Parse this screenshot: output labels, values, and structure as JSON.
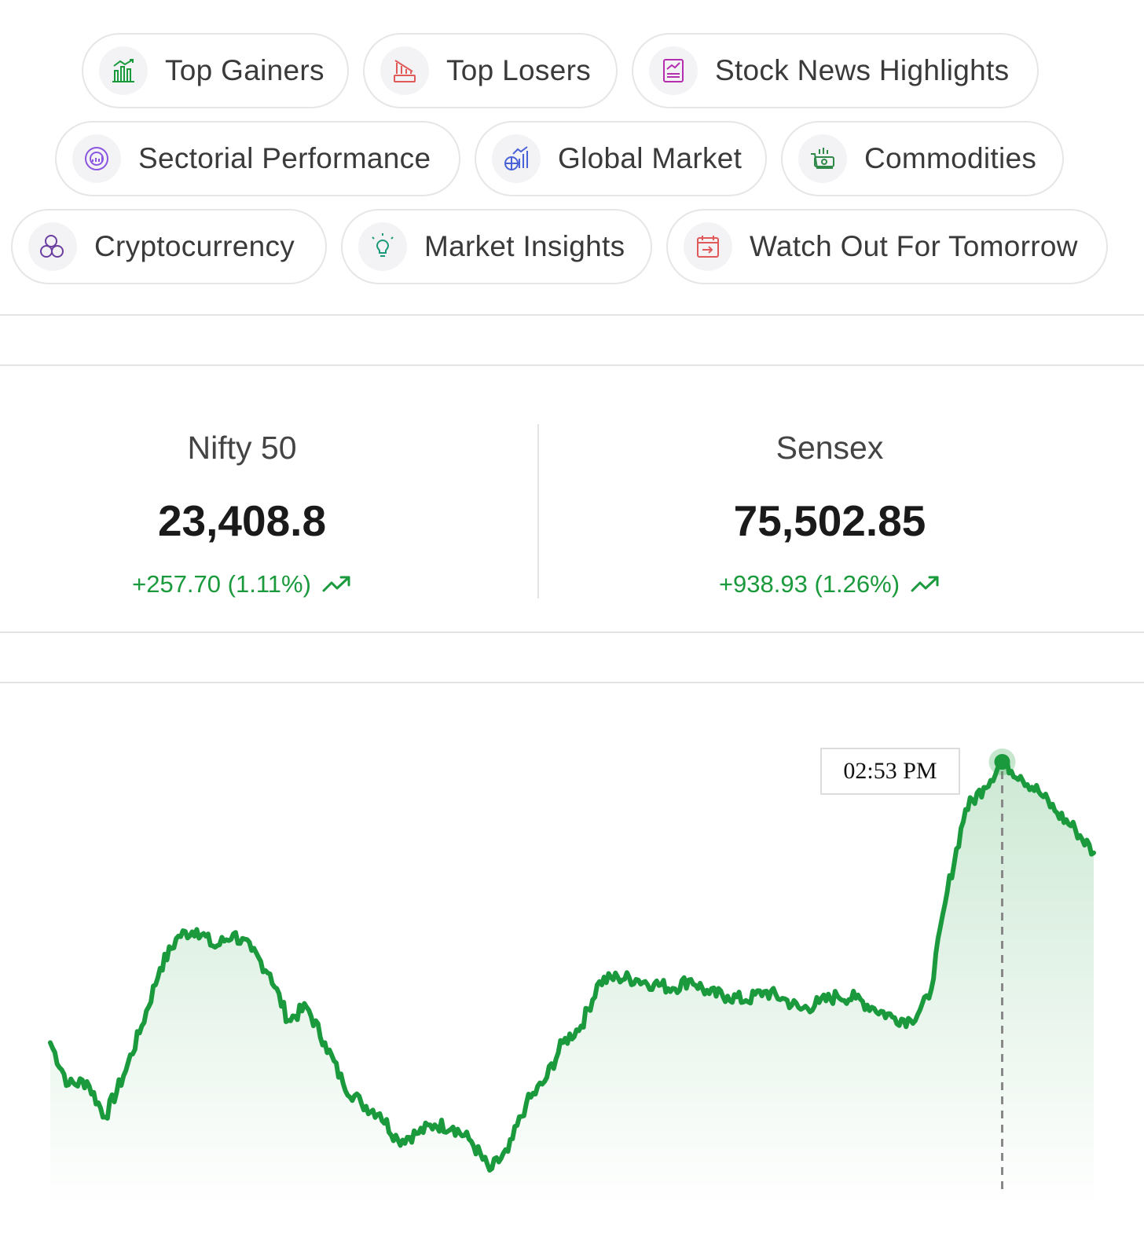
{
  "nav_pills": [
    {
      "label": "Top Gainers",
      "icon": "bar-chart-up-icon",
      "color": "#1a9a3c"
    },
    {
      "label": "Top Losers",
      "icon": "loss-chart-icon",
      "color": "#e05a5a"
    },
    {
      "label": "Stock News Highlights",
      "icon": "news-report-icon",
      "color": "#b52eb0"
    },
    {
      "label": "Sectorial Performance",
      "icon": "pie-target-icon",
      "color": "#8a55e0"
    },
    {
      "label": "Global Market",
      "icon": "globe-chart-icon",
      "color": "#4a62d8"
    },
    {
      "label": "Commodities",
      "icon": "money-cart-icon",
      "color": "#2f8a4a"
    },
    {
      "label": "Cryptocurrency",
      "icon": "crypto-coins-icon",
      "color": "#6b3fa0"
    },
    {
      "label": "Market Insights",
      "icon": "lightbulb-chart-icon",
      "color": "#1a9a7a"
    },
    {
      "label": "Watch Out For Tomorrow",
      "icon": "calendar-arrow-icon",
      "color": "#e05a5a"
    }
  ],
  "indices": [
    {
      "name": "Nifty 50",
      "value": "23,408.8",
      "change": "+257.70 (1.11%)",
      "trend": "trending-up-icon"
    },
    {
      "name": "Sensex",
      "value": "75,502.85",
      "change": "+938.93 (1.26%)",
      "trend": "trending-up-icon"
    }
  ],
  "colors": {
    "positive": "#1a9a3c",
    "line": "#1a9a3c",
    "border": "#e4e4e4"
  },
  "chart_data": {
    "type": "area",
    "tooltip": {
      "label": "02:53 PM",
      "point_index": 52
    },
    "series": [
      {
        "values": [
          30.0,
          22.4,
          23.0,
          16.6,
          24.0,
          33.0,
          43.4,
          49.2,
          50.4,
          47.2,
          49.6,
          46.6,
          42.4,
          34.0,
          36.4,
          30.0,
          22.6,
          19.0,
          17.2,
          12.4,
          13.6,
          15.2,
          14.8,
          12.2,
          7.0,
          10.4,
          19.0,
          23.0,
          30.0,
          33.0,
          41.0,
          41.8,
          41.4,
          40.6,
          39.8,
          41.4,
          38.8,
          38.4,
          37.6,
          39.2,
          38.0,
          36.0,
          37.2,
          38.4,
          38.0,
          36.2,
          34.6,
          34.0,
          38.0,
          57.2,
          72.0,
          76.0,
          80.6,
          78.0,
          75.2,
          71.4,
          68.4,
          64.2
        ]
      }
    ]
  }
}
